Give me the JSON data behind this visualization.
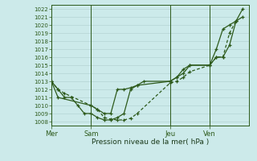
{
  "bg_color": "#cceaea",
  "grid_color": "#c0d8d8",
  "line_color": "#2d5a1b",
  "title": "Pression niveau de la mer( hPa )",
  "x_ticks_labels": [
    "Mer",
    "Sam",
    "Jeu",
    "Ven"
  ],
  "x_ticks_pos": [
    0,
    6,
    18,
    24
  ],
  "xlim": [
    0,
    30
  ],
  "ylim": [
    1007.5,
    1022.5
  ],
  "yticks": [
    1008,
    1009,
    1010,
    1011,
    1012,
    1013,
    1014,
    1015,
    1016,
    1017,
    1018,
    1019,
    1020,
    1021,
    1022
  ],
  "series1_x": [
    0,
    1,
    2,
    6,
    7,
    8,
    9,
    10,
    11,
    12,
    13,
    18,
    19,
    20,
    21,
    24,
    25,
    26,
    27,
    28
  ],
  "series1_y": [
    1013.0,
    1012.0,
    1011.5,
    1010.0,
    1009.5,
    1008.5,
    1008.3,
    1008.2,
    1008.2,
    1008.4,
    1009.0,
    1012.8,
    1013.0,
    1013.5,
    1014.2,
    1015.0,
    1016.0,
    1016.0,
    1019.0,
    1020.5
  ],
  "series2_x": [
    0,
    1,
    6,
    7,
    8,
    9,
    10,
    11,
    12,
    13,
    18,
    19,
    20,
    21,
    24,
    25,
    26,
    27,
    28,
    29
  ],
  "series2_y": [
    1013.0,
    1011.0,
    1010.0,
    1009.5,
    1009.0,
    1009.0,
    1012.0,
    1012.0,
    1012.2,
    1012.5,
    1013.0,
    1013.5,
    1014.5,
    1015.0,
    1015.0,
    1016.0,
    1016.0,
    1017.5,
    1020.5,
    1021.0
  ],
  "series3_x": [
    0,
    1,
    2,
    3,
    4,
    5,
    6,
    7,
    8,
    9,
    10,
    11,
    12,
    13,
    14,
    18,
    19,
    20,
    21,
    24,
    25,
    26,
    27,
    28,
    29
  ],
  "series3_y": [
    1013.0,
    1012.0,
    1011.0,
    1011.0,
    1010.0,
    1009.0,
    1009.0,
    1008.5,
    1008.2,
    1008.2,
    1008.5,
    1009.0,
    1012.0,
    1012.5,
    1013.0,
    1013.0,
    1013.5,
    1014.0,
    1015.0,
    1015.0,
    1017.0,
    1019.5,
    1020.0,
    1020.5,
    1022.0
  ]
}
